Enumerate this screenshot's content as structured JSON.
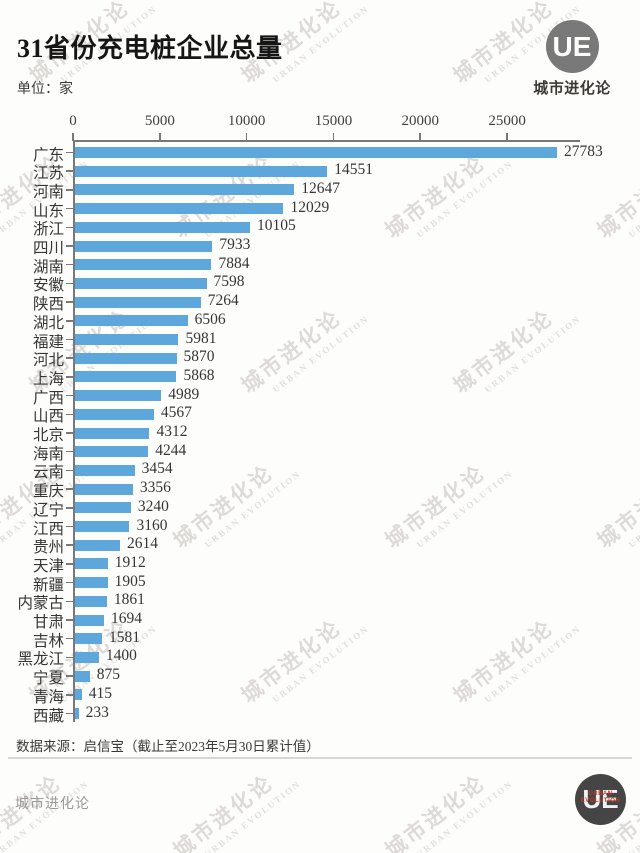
{
  "header": {
    "title": "31省份充电桩企业总量",
    "unit_label": "单位：家"
  },
  "branding": {
    "logo_text": "UE",
    "name": "城市进化论",
    "english_name": "URBAN EVOLUTION"
  },
  "chart_data": {
    "type": "bar",
    "orientation": "horizontal",
    "title": "31省份充电桩企业总量",
    "unit": "家",
    "categories": [
      "广东",
      "江苏",
      "河南",
      "山东",
      "浙江",
      "四川",
      "湖南",
      "安徽",
      "陕西",
      "湖北",
      "福建",
      "河北",
      "上海",
      "广西",
      "山西",
      "北京",
      "海南",
      "云南",
      "重庆",
      "辽宁",
      "江西",
      "贵州",
      "天津",
      "新疆",
      "内蒙古",
      "甘肃",
      "吉林",
      "黑龙江",
      "宁夏",
      "青海",
      "西藏"
    ],
    "values": [
      27783,
      14551,
      12647,
      12029,
      10105,
      7933,
      7884,
      7598,
      7264,
      6506,
      5981,
      5870,
      5868,
      4989,
      4567,
      4312,
      4244,
      3454,
      3356,
      3240,
      3160,
      2614,
      1912,
      1905,
      1861,
      1694,
      1581,
      1400,
      875,
      415,
      233
    ],
    "x_ticks": [
      0,
      5000,
      10000,
      15000,
      20000,
      25000
    ],
    "xlim": [
      0,
      29200
    ],
    "grid": false,
    "legend": false,
    "bar_color": "#5EA7DD",
    "axis_color": "#787878",
    "value_labels_shown": true
  },
  "footer": {
    "source": "数据来源：启信宝（截止至2023年5月30日累计值）",
    "brand": "城市进化论"
  },
  "watermark": {
    "line1": "城市进化论",
    "line2": "URBAN EVOLUTION"
  }
}
